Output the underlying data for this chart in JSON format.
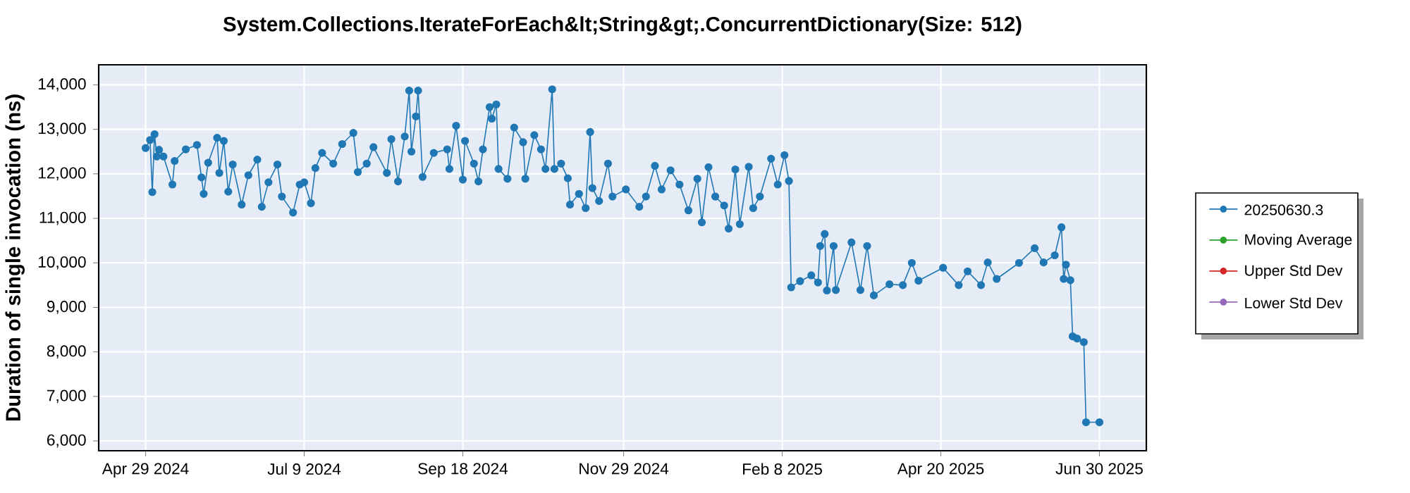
{
  "chart_data": {
    "type": "line",
    "title": "System.Collections.IterateForEach&lt;String&gt;.ConcurrentDictionary(Size: 512)",
    "ylabel": "Duration of single invocation (ns)",
    "x": [
      "2024-04-29",
      "2024-05-01",
      "2024-05-02",
      "2024-05-03",
      "2024-05-04",
      "2024-05-05",
      "2024-05-07",
      "2024-05-11",
      "2024-05-12",
      "2024-05-17",
      "2024-05-22",
      "2024-05-24",
      "2024-05-25",
      "2024-05-27",
      "2024-05-31",
      "2024-06-01",
      "2024-06-03",
      "2024-06-05",
      "2024-06-07",
      "2024-06-11",
      "2024-06-14",
      "2024-06-18",
      "2024-06-20",
      "2024-06-23",
      "2024-06-27",
      "2024-06-29",
      "2024-07-04",
      "2024-07-07",
      "2024-07-09",
      "2024-07-12",
      "2024-07-14",
      "2024-07-17",
      "2024-07-22",
      "2024-07-26",
      "2024-07-31",
      "2024-08-02",
      "2024-08-06",
      "2024-08-09",
      "2024-08-15",
      "2024-08-17",
      "2024-08-20",
      "2024-08-23",
      "2024-08-25",
      "2024-08-26",
      "2024-08-28",
      "2024-08-29",
      "2024-08-31",
      "2024-09-05",
      "2024-09-11",
      "2024-09-12",
      "2024-09-15",
      "2024-09-18",
      "2024-09-19",
      "2024-09-23",
      "2024-09-25",
      "2024-09-27",
      "2024-09-30",
      "2024-10-01",
      "2024-10-03",
      "2024-10-04",
      "2024-10-08",
      "2024-10-11",
      "2024-10-15",
      "2024-10-16",
      "2024-10-20",
      "2024-10-23",
      "2024-10-25",
      "2024-10-28",
      "2024-10-29",
      "2024-11-01",
      "2024-11-04",
      "2024-11-05",
      "2024-11-09",
      "2024-11-12",
      "2024-11-14",
      "2024-11-15",
      "2024-11-18",
      "2024-11-22",
      "2024-11-24",
      "2024-11-30",
      "2024-12-06",
      "2024-12-09",
      "2024-12-13",
      "2024-12-16",
      "2024-12-20",
      "2024-12-24",
      "2024-12-28",
      "2025-01-01",
      "2025-01-03",
      "2025-01-06",
      "2025-01-09",
      "2025-01-13",
      "2025-01-15",
      "2025-01-18",
      "2025-01-20",
      "2025-01-24",
      "2025-01-26",
      "2025-01-29",
      "2025-02-03",
      "2025-02-06",
      "2025-02-09",
      "2025-02-11",
      "2025-02-12",
      "2025-02-16",
      "2025-02-21",
      "2025-02-24",
      "2025-02-25",
      "2025-02-27",
      "2025-02-28",
      "2025-03-03",
      "2025-03-04",
      "2025-03-11",
      "2025-03-15",
      "2025-03-18",
      "2025-03-21",
      "2025-03-28",
      "2025-04-03",
      "2025-04-07",
      "2025-04-10",
      "2025-04-21",
      "2025-04-28",
      "2025-05-02",
      "2025-05-08",
      "2025-05-11",
      "2025-05-15",
      "2025-05-25",
      "2025-06-01",
      "2025-06-05",
      "2025-06-10",
      "2025-06-13",
      "2025-06-14",
      "2025-06-15",
      "2025-06-17",
      "2025-06-18",
      "2025-06-20",
      "2025-06-23",
      "2025-06-24",
      "2025-06-30"
    ],
    "series": [
      {
        "name": "20250630.3",
        "color": "#1f77b4",
        "values": [
          12580,
          12760,
          11590,
          12890,
          12390,
          12540,
          12390,
          11760,
          12290,
          12550,
          12650,
          11920,
          11550,
          12250,
          12810,
          12020,
          12740,
          11600,
          12210,
          11310,
          11970,
          12320,
          11260,
          11810,
          12210,
          11490,
          11130,
          11760,
          11810,
          11340,
          12130,
          12470,
          12230,
          12670,
          12920,
          12040,
          12230,
          12600,
          12020,
          12780,
          11830,
          12840,
          13870,
          12500,
          13290,
          13870,
          11930,
          12470,
          12550,
          12110,
          13080,
          11870,
          12740,
          12230,
          11830,
          12550,
          13500,
          13240,
          13560,
          12110,
          11890,
          13040,
          12710,
          11890,
          12870,
          12550,
          12110,
          13900,
          12110,
          12230,
          11900,
          11310,
          11550,
          11230,
          12940,
          11680,
          11390,
          12230,
          11490,
          11650,
          11260,
          11490,
          12180,
          11650,
          12080,
          11760,
          11180,
          11890,
          10910,
          12150,
          11490,
          11290,
          10770,
          12100,
          10870,
          12160,
          11230,
          11490,
          12340,
          11760,
          12420,
          11840,
          9450,
          9590,
          9720,
          9560,
          10380,
          10650,
          9380,
          10380,
          9390,
          10460,
          9390,
          10380,
          9270,
          9520,
          9500,
          10000,
          9600,
          9890,
          9500,
          9810,
          9500,
          10010,
          9640,
          10000,
          10330,
          10010,
          10170,
          10800,
          9640,
          9960,
          9610,
          8350,
          8300,
          8220,
          6420,
          6420
        ]
      },
      {
        "name": "Moving Average",
        "color": "#2ca02c",
        "values": [
          null,
          null,
          null,
          null,
          null,
          null,
          null,
          null,
          null,
          null,
          null,
          null,
          null,
          null,
          null,
          null,
          null,
          null,
          null,
          null,
          null,
          null,
          null,
          null,
          null,
          null,
          null,
          null,
          null,
          null,
          null,
          null,
          null,
          null,
          null,
          null,
          null,
          null,
          null,
          null,
          null,
          null,
          null,
          null,
          null,
          null,
          null,
          null,
          null,
          null,
          null,
          null,
          null,
          null,
          null,
          null,
          null,
          null,
          null,
          null,
          null,
          null,
          null,
          null,
          null,
          null,
          null,
          null,
          null,
          null,
          null,
          null,
          null,
          null,
          null,
          null,
          null,
          null,
          null,
          null,
          null,
          null,
          null,
          null,
          null,
          null,
          null,
          null,
          null,
          null,
          null,
          null,
          null,
          null,
          null,
          null,
          null,
          null,
          null,
          null,
          null,
          null,
          null,
          null,
          null,
          null,
          null,
          null,
          null,
          null,
          null,
          null,
          null,
          null,
          null,
          null,
          null,
          null,
          null,
          null,
          null,
          null,
          null,
          null,
          null,
          null,
          null,
          null,
          null,
          null,
          null,
          null,
          null,
          null,
          null,
          null,
          null,
          null
        ]
      },
      {
        "name": "Upper Std Dev",
        "color": "#d62728",
        "values": [
          null,
          null,
          null,
          null,
          null,
          null,
          null,
          null,
          null,
          null,
          null,
          null,
          null,
          null,
          null,
          null,
          null,
          null,
          null,
          null,
          null,
          null,
          null,
          null,
          null,
          null,
          null,
          null,
          null,
          null,
          null,
          null,
          null,
          null,
          null,
          null,
          null,
          null,
          null,
          null,
          null,
          null,
          null,
          null,
          null,
          null,
          null,
          null,
          null,
          null,
          null,
          null,
          null,
          null,
          null,
          null,
          null,
          null,
          null,
          null,
          null,
          null,
          null,
          null,
          null,
          null,
          null,
          null,
          null,
          null,
          null,
          null,
          null,
          null,
          null,
          null,
          null,
          null,
          null,
          null,
          null,
          null,
          null,
          null,
          null,
          null,
          null,
          null,
          null,
          null,
          null,
          null,
          null,
          null,
          null,
          null,
          null,
          null,
          null,
          null,
          null,
          null,
          null,
          null,
          null,
          null,
          null,
          null,
          null,
          null,
          null,
          null,
          null,
          null,
          null,
          null,
          null,
          null,
          null,
          null,
          null,
          null,
          null,
          null,
          null,
          null,
          null,
          null,
          null,
          null,
          null,
          null,
          null,
          null,
          null,
          null,
          null,
          null
        ]
      },
      {
        "name": "Lower Std Dev",
        "color": "#9467bd",
        "values": [
          null,
          null,
          null,
          null,
          null,
          null,
          null,
          null,
          null,
          null,
          null,
          null,
          null,
          null,
          null,
          null,
          null,
          null,
          null,
          null,
          null,
          null,
          null,
          null,
          null,
          null,
          null,
          null,
          null,
          null,
          null,
          null,
          null,
          null,
          null,
          null,
          null,
          null,
          null,
          null,
          null,
          null,
          null,
          null,
          null,
          null,
          null,
          null,
          null,
          null,
          null,
          null,
          null,
          null,
          null,
          null,
          null,
          null,
          null,
          null,
          null,
          null,
          null,
          null,
          null,
          null,
          null,
          null,
          null,
          null,
          null,
          null,
          null,
          null,
          null,
          null,
          null,
          null,
          null,
          null,
          null,
          null,
          null,
          null,
          null,
          null,
          null,
          null,
          null,
          null,
          null,
          null,
          null,
          null,
          null,
          null,
          null,
          null,
          null,
          null,
          null,
          null,
          null,
          null,
          null,
          null,
          null,
          null,
          null,
          null,
          null,
          null,
          null,
          null,
          null,
          null,
          null,
          null,
          null,
          null,
          null,
          null,
          null,
          null,
          null,
          null,
          null,
          null,
          null,
          null,
          null,
          null,
          null,
          null,
          null,
          null,
          null,
          null
        ]
      }
    ],
    "xlim": [
      "2024-04-08",
      "2025-07-21"
    ],
    "xticks": [
      {
        "value": "2024-04-29",
        "label": "Apr 29 2024"
      },
      {
        "value": "2024-07-09",
        "label": "Jul 9 2024"
      },
      {
        "value": "2024-09-18",
        "label": "Sep 18 2024"
      },
      {
        "value": "2024-11-29",
        "label": "Nov 29 2024"
      },
      {
        "value": "2025-02-08",
        "label": "Feb 8 2025"
      },
      {
        "value": "2025-04-20",
        "label": "Apr 20 2025"
      },
      {
        "value": "2025-06-30",
        "label": "Jun 30 2025"
      }
    ],
    "ylim": [
      5780,
      14450
    ],
    "yticks": [
      {
        "value": 6000,
        "label": "6,000"
      },
      {
        "value": 7000,
        "label": "7,000"
      },
      {
        "value": 8000,
        "label": "8,000"
      },
      {
        "value": 9000,
        "label": "9,000"
      },
      {
        "value": 10000,
        "label": "10,000"
      },
      {
        "value": 11000,
        "label": "11,000"
      },
      {
        "value": 12000,
        "label": "12,000"
      },
      {
        "value": 13000,
        "label": "13,000"
      },
      {
        "value": 14000,
        "label": "14,000"
      }
    ],
    "grid": true,
    "legend": "right",
    "marker": "circle",
    "line_style": "solid"
  }
}
